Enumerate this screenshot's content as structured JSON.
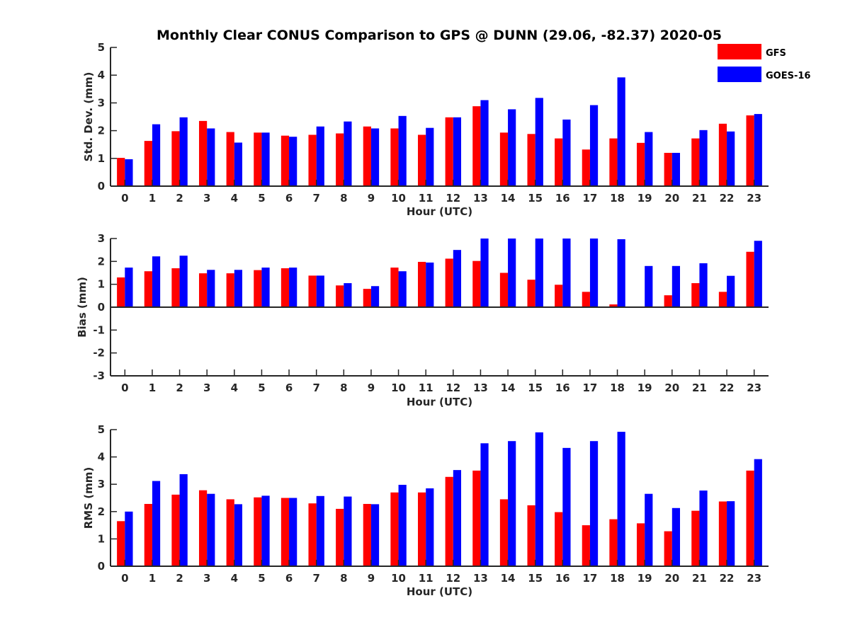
{
  "figure": {
    "title": "Monthly Clear CONUS Comparison to GPS @ DUNN (29.06, -82.37) 2020-05",
    "legend": [
      {
        "name": "GFS",
        "color": "#ff0000"
      },
      {
        "name": "GOES-16",
        "color": "#0000ff"
      }
    ]
  },
  "chart_data": [
    {
      "type": "bar",
      "title": "Monthly Clear CONUS Comparison to GPS @ DUNN (29.06, -82.37) 2020-05",
      "xlabel": "Hour (UTC)",
      "ylabel": "Std. Dev. (mm)",
      "ylim": [
        0,
        5
      ],
      "yticks": [
        0,
        1,
        2,
        3,
        4,
        5
      ],
      "categories": [
        "0",
        "1",
        "2",
        "3",
        "4",
        "5",
        "6",
        "7",
        "8",
        "9",
        "10",
        "11",
        "12",
        "13",
        "14",
        "15",
        "16",
        "17",
        "18",
        "19",
        "20",
        "21",
        "22",
        "23"
      ],
      "series": [
        {
          "name": "GFS",
          "color": "#ff0000",
          "values": [
            1.02,
            1.63,
            1.98,
            2.35,
            1.95,
            1.93,
            1.82,
            1.85,
            1.9,
            2.15,
            2.08,
            1.85,
            2.48,
            2.88,
            1.93,
            1.88,
            1.72,
            1.32,
            1.72,
            1.56,
            1.2,
            1.72,
            2.25,
            2.55
          ]
        },
        {
          "name": "GOES-16",
          "color": "#0000ff",
          "values": [
            0.97,
            2.23,
            2.48,
            2.08,
            1.57,
            1.93,
            1.78,
            2.15,
            2.33,
            2.08,
            2.53,
            2.1,
            2.48,
            3.1,
            2.77,
            3.18,
            2.4,
            2.92,
            3.92,
            1.95,
            1.2,
            2.02,
            1.97,
            2.6
          ]
        }
      ],
      "legend": "top-right"
    },
    {
      "type": "bar",
      "title": "",
      "xlabel": "Hour (UTC)",
      "ylabel": "Bias (mm)",
      "ylim": [
        -3,
        3
      ],
      "yticks": [
        -3,
        -2,
        -1,
        0,
        1,
        2,
        3
      ],
      "categories": [
        "0",
        "1",
        "2",
        "3",
        "4",
        "5",
        "6",
        "7",
        "8",
        "9",
        "10",
        "11",
        "12",
        "13",
        "14",
        "15",
        "16",
        "17",
        "18",
        "19",
        "20",
        "21",
        "22",
        "23"
      ],
      "series": [
        {
          "name": "GFS",
          "color": "#ff0000",
          "values": [
            1.3,
            1.57,
            1.7,
            1.48,
            1.48,
            1.62,
            1.7,
            1.38,
            0.95,
            0.8,
            1.73,
            1.98,
            2.12,
            2.02,
            1.5,
            1.2,
            0.98,
            0.67,
            0.12,
            0.02,
            0.52,
            1.05,
            0.67,
            2.42
          ]
        },
        {
          "name": "GOES-16",
          "color": "#0000ff",
          "values": [
            1.73,
            2.22,
            2.25,
            1.63,
            1.63,
            1.73,
            1.73,
            1.38,
            1.05,
            0.92,
            1.57,
            1.95,
            2.5,
            3.0,
            3.0,
            3.0,
            3.0,
            3.0,
            2.97,
            1.8,
            1.8,
            1.92,
            1.37,
            2.9
          ]
        }
      ]
    },
    {
      "type": "bar",
      "title": "",
      "xlabel": "Hour (UTC)",
      "ylabel": "RMS (mm)",
      "ylim": [
        0,
        5
      ],
      "yticks": [
        0,
        1,
        2,
        3,
        4,
        5
      ],
      "categories": [
        "0",
        "1",
        "2",
        "3",
        "4",
        "5",
        "6",
        "7",
        "8",
        "9",
        "10",
        "11",
        "12",
        "13",
        "14",
        "15",
        "16",
        "17",
        "18",
        "19",
        "20",
        "21",
        "22",
        "23"
      ],
      "series": [
        {
          "name": "GFS",
          "color": "#ff0000",
          "values": [
            1.65,
            2.28,
            2.62,
            2.78,
            2.45,
            2.52,
            2.5,
            2.3,
            2.1,
            2.28,
            2.7,
            2.7,
            3.27,
            3.5,
            2.45,
            2.23,
            1.98,
            1.5,
            1.72,
            1.57,
            1.28,
            2.03,
            2.37,
            3.5
          ]
        },
        {
          "name": "GOES-16",
          "color": "#0000ff",
          "values": [
            2.0,
            3.12,
            3.37,
            2.65,
            2.27,
            2.58,
            2.5,
            2.57,
            2.55,
            2.27,
            2.98,
            2.85,
            3.52,
            4.5,
            4.58,
            4.9,
            4.33,
            4.58,
            4.92,
            2.65,
            2.13,
            2.77,
            2.38,
            3.92
          ]
        }
      ]
    }
  ]
}
